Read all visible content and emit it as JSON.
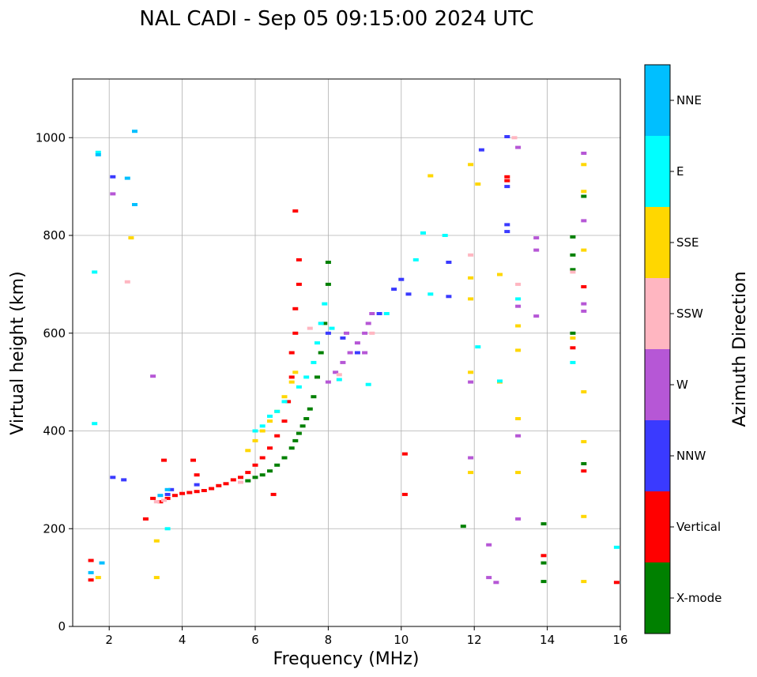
{
  "chart_data": {
    "type": "scatter",
    "title": "NAL CADI - Sep 05 09:15:00 2024 UTC",
    "xlabel": "Frequency (MHz)",
    "ylabel": "Virtual height (km)",
    "xlim": [
      1,
      16
    ],
    "ylim": [
      0,
      1120
    ],
    "xticks": [
      2,
      4,
      6,
      8,
      10,
      12,
      14,
      16
    ],
    "yticks": [
      0,
      200,
      400,
      600,
      800,
      1000
    ],
    "grid": true,
    "colorbar": {
      "label": "Azimuth Direction",
      "categories": [
        "X-mode",
        "Vertical",
        "NNW",
        "W",
        "SSW",
        "SSE",
        "E",
        "NNE"
      ],
      "colors": [
        "#008000",
        "#ff0000",
        "#3a3aff",
        "#b657d6",
        "#ffb6c1",
        "#ffd700",
        "#00ffff",
        "#00bfff"
      ]
    },
    "series": [
      {
        "name": "X-mode",
        "points": [
          [
            5.8,
            298
          ],
          [
            6.0,
            305
          ],
          [
            6.2,
            310
          ],
          [
            6.4,
            318
          ],
          [
            6.6,
            330
          ],
          [
            6.8,
            345
          ],
          [
            7.0,
            365
          ],
          [
            7.1,
            380
          ],
          [
            7.2,
            395
          ],
          [
            7.3,
            410
          ],
          [
            7.4,
            425
          ],
          [
            7.5,
            445
          ],
          [
            7.6,
            470
          ],
          [
            7.7,
            510
          ],
          [
            7.8,
            560
          ],
          [
            7.9,
            620
          ],
          [
            8.0,
            700
          ],
          [
            8.0,
            745
          ],
          [
            11.7,
            205
          ],
          [
            13.9,
            210
          ],
          [
            13.9,
            92
          ],
          [
            14.7,
            797
          ],
          [
            14.7,
            730
          ],
          [
            14.7,
            760
          ],
          [
            14.7,
            600
          ],
          [
            15.0,
            880
          ],
          [
            15.0,
            333
          ],
          [
            13.9,
            130
          ]
        ]
      },
      {
        "name": "Vertical",
        "points": [
          [
            3.4,
            255
          ],
          [
            3.6,
            262
          ],
          [
            3.8,
            268
          ],
          [
            4.0,
            272
          ],
          [
            4.2,
            274
          ],
          [
            4.4,
            276
          ],
          [
            4.6,
            278
          ],
          [
            4.8,
            282
          ],
          [
            5.0,
            288
          ],
          [
            5.2,
            292
          ],
          [
            5.4,
            300
          ],
          [
            5.6,
            305
          ],
          [
            5.8,
            315
          ],
          [
            6.0,
            330
          ],
          [
            6.2,
            345
          ],
          [
            6.4,
            365
          ],
          [
            6.6,
            390
          ],
          [
            6.8,
            420
          ],
          [
            6.9,
            460
          ],
          [
            7.0,
            510
          ],
          [
            7.0,
            560
          ],
          [
            7.1,
            600
          ],
          [
            7.1,
            650
          ],
          [
            7.2,
            700
          ],
          [
            7.2,
            750
          ],
          [
            7.1,
            850
          ],
          [
            6.5,
            270
          ],
          [
            3.2,
            262
          ],
          [
            1.5,
            95
          ],
          [
            1.5,
            135
          ],
          [
            3.5,
            340
          ],
          [
            12.9,
            912
          ],
          [
            12.9,
            920
          ],
          [
            10.1,
            353
          ],
          [
            10.1,
            270
          ],
          [
            15.0,
            318
          ],
          [
            15.0,
            695
          ],
          [
            15.9,
            90
          ],
          [
            13.9,
            145
          ],
          [
            14.7,
            570
          ],
          [
            4.3,
            340
          ],
          [
            4.4,
            310
          ],
          [
            3.0,
            220
          ]
        ]
      },
      {
        "name": "NNW",
        "points": [
          [
            3.6,
            270
          ],
          [
            3.7,
            280
          ],
          [
            4.4,
            290
          ],
          [
            8.0,
            600
          ],
          [
            8.4,
            590
          ],
          [
            8.8,
            560
          ],
          [
            9.4,
            640
          ],
          [
            9.8,
            690
          ],
          [
            10.0,
            710
          ],
          [
            10.2,
            680
          ],
          [
            12.9,
            1002
          ],
          [
            12.9,
            822
          ],
          [
            12.9,
            808
          ],
          [
            12.9,
            900
          ],
          [
            12.2,
            975
          ],
          [
            11.3,
            745
          ],
          [
            11.3,
            675
          ],
          [
            2.1,
            920
          ],
          [
            2.4,
            300
          ],
          [
            2.1,
            305
          ]
        ]
      },
      {
        "name": "W",
        "points": [
          [
            8.0,
            500
          ],
          [
            8.2,
            520
          ],
          [
            8.4,
            540
          ],
          [
            8.6,
            560
          ],
          [
            8.8,
            580
          ],
          [
            9.0,
            600
          ],
          [
            9.1,
            620
          ],
          [
            9.2,
            640
          ],
          [
            8.5,
            600
          ],
          [
            9.0,
            560
          ],
          [
            13.2,
            980
          ],
          [
            13.2,
            390
          ],
          [
            13.2,
            220
          ],
          [
            13.2,
            655
          ],
          [
            13.7,
            795
          ],
          [
            13.7,
            770
          ],
          [
            13.7,
            635
          ],
          [
            15.0,
            968
          ],
          [
            15.0,
            830
          ],
          [
            15.0,
            660
          ],
          [
            15.0,
            645
          ],
          [
            12.4,
            167
          ],
          [
            12.4,
            100
          ],
          [
            12.6,
            90
          ],
          [
            11.9,
            345
          ],
          [
            11.9,
            500
          ],
          [
            2.1,
            885
          ],
          [
            3.2,
            512
          ]
        ]
      },
      {
        "name": "SSW",
        "points": [
          [
            3.3,
            255
          ],
          [
            3.5,
            258
          ],
          [
            5.6,
            295
          ],
          [
            7.5,
            610
          ],
          [
            8.3,
            515
          ],
          [
            9.2,
            600
          ],
          [
            11.9,
            760
          ],
          [
            13.2,
            700
          ],
          [
            13.1,
            1000
          ],
          [
            14.7,
            725
          ],
          [
            2.5,
            705
          ]
        ]
      },
      {
        "name": "SSE",
        "points": [
          [
            5.8,
            360
          ],
          [
            6.0,
            380
          ],
          [
            6.2,
            400
          ],
          [
            6.4,
            420
          ],
          [
            6.6,
            440
          ],
          [
            6.8,
            470
          ],
          [
            7.0,
            500
          ],
          [
            7.1,
            520
          ],
          [
            11.9,
            945
          ],
          [
            11.9,
            713
          ],
          [
            11.9,
            670
          ],
          [
            11.9,
            520
          ],
          [
            11.9,
            315
          ],
          [
            12.7,
            720
          ],
          [
            13.2,
            615
          ],
          [
            13.2,
            565
          ],
          [
            13.2,
            425
          ],
          [
            13.2,
            315
          ],
          [
            15.0,
            945
          ],
          [
            15.0,
            890
          ],
          [
            15.0,
            770
          ],
          [
            15.0,
            480
          ],
          [
            15.0,
            378
          ],
          [
            15.0,
            225
          ],
          [
            15.0,
            92
          ],
          [
            14.7,
            590
          ],
          [
            3.3,
            175
          ],
          [
            3.3,
            100
          ],
          [
            1.7,
            100
          ],
          [
            2.6,
            795
          ],
          [
            12.7,
            500
          ],
          [
            10.8,
            922
          ],
          [
            12.1,
            905
          ]
        ]
      },
      {
        "name": "E",
        "points": [
          [
            6.0,
            400
          ],
          [
            6.2,
            410
          ],
          [
            6.4,
            430
          ],
          [
            6.6,
            440
          ],
          [
            6.8,
            460
          ],
          [
            7.2,
            490
          ],
          [
            7.4,
            510
          ],
          [
            7.6,
            540
          ],
          [
            7.7,
            580
          ],
          [
            7.8,
            620
          ],
          [
            7.9,
            660
          ],
          [
            8.3,
            505
          ],
          [
            8.1,
            610
          ],
          [
            9.1,
            495
          ],
          [
            9.6,
            640
          ],
          [
            10.4,
            750
          ],
          [
            10.6,
            805
          ],
          [
            11.2,
            800
          ],
          [
            10.8,
            680
          ],
          [
            12.1,
            572
          ],
          [
            12.7,
            502
          ],
          [
            13.2,
            670
          ],
          [
            14.7,
            540
          ],
          [
            15.9,
            162
          ],
          [
            1.7,
            970
          ],
          [
            1.6,
            725
          ],
          [
            3.6,
            200
          ],
          [
            1.6,
            415
          ]
        ]
      },
      {
        "name": "NNE",
        "points": [
          [
            3.4,
            268
          ],
          [
            3.6,
            280
          ],
          [
            1.5,
            110
          ],
          [
            1.8,
            130
          ],
          [
            2.7,
            1013
          ],
          [
            2.7,
            863
          ],
          [
            2.5,
            917
          ],
          [
            1.7,
            965
          ]
        ]
      }
    ]
  }
}
